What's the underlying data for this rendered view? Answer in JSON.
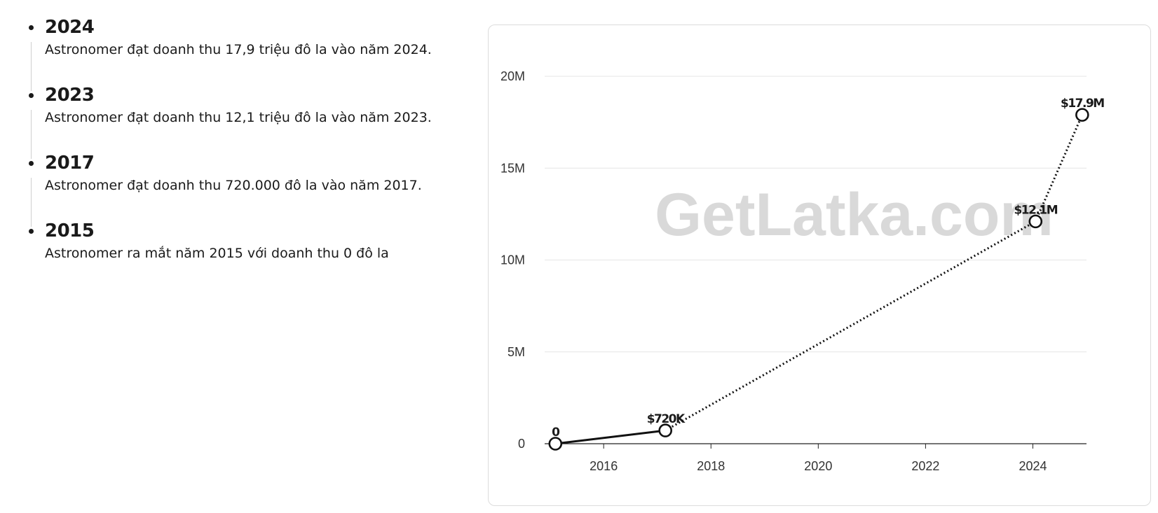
{
  "timeline": [
    {
      "year": "2024",
      "text": "Astronomer đạt doanh thu 17,9 triệu đô la vào năm 2024."
    },
    {
      "year": "2023",
      "text": "Astronomer đạt doanh thu 12,1 triệu đô la vào năm 2023."
    },
    {
      "year": "2017",
      "text": "Astronomer đạt doanh thu 720.000 đô la vào năm 2017."
    },
    {
      "year": "2015",
      "text": "Astronomer ra mắt năm 2015 với doanh thu 0 đô la"
    }
  ],
  "watermark": "GetLatka.com",
  "chart_data": {
    "type": "line",
    "title": "",
    "xlabel": "",
    "ylabel": "",
    "x": [
      2015.1,
      2017.15,
      2024.05,
      2024.92
    ],
    "values": [
      0,
      720000,
      12100000,
      17900000
    ],
    "data_labels": [
      "0",
      "$720K",
      "$12.1M",
      "$17.9M"
    ],
    "xlim": [
      2014.9,
      2025.0
    ],
    "ylim": [
      0,
      20000000
    ],
    "x_ticks": [
      2016,
      2018,
      2020,
      2022,
      2024
    ],
    "x_tick_labels": [
      "2016",
      "2018",
      "2020",
      "2022",
      "2024"
    ],
    "y_ticks": [
      0,
      5000000,
      10000000,
      15000000,
      20000000
    ],
    "y_tick_labels": [
      "0",
      "5M",
      "10M",
      "15M",
      "20M"
    ],
    "line_styles": [
      "solid",
      "dotted",
      "dotted"
    ],
    "grid": "horizontal",
    "colors": {
      "line": "#111111",
      "grid": "#e6e6e6",
      "watermark": "#d9d9d9"
    }
  }
}
